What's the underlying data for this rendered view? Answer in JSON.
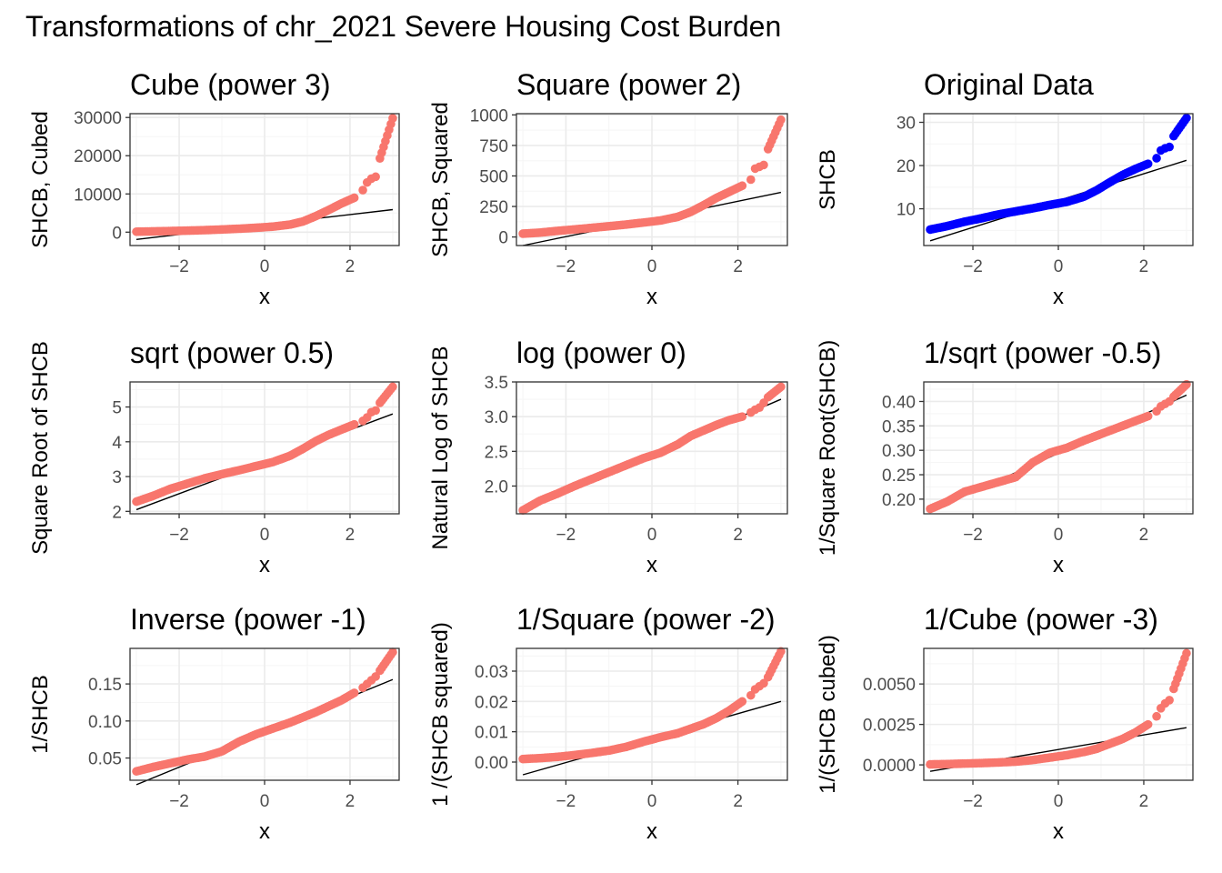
{
  "title": "Transformations of chr_2021 Severe Housing Cost Burden",
  "colors": {
    "points": "#F8766D",
    "original_points": "#0000FF",
    "line": "#000000",
    "grid_major": "#EBEBEB",
    "grid_minor": "#F5F5F5",
    "panel_border": "#333333"
  },
  "chart_data": [
    {
      "type": "scatter",
      "title": "Cube (power 3)",
      "xlabel": "x",
      "ylabel": "SHCB, Cubed",
      "xlim": [
        -3.15,
        3.15
      ],
      "ylim": [
        -3500,
        31000
      ],
      "xticks": [
        -2,
        0,
        2
      ],
      "yticks": [
        0,
        10000,
        20000,
        30000
      ],
      "ytick_labels": [
        "0",
        "10000",
        "20000",
        "30000"
      ],
      "point_color": "#F8766D",
      "points": [
        [
          -3,
          125
        ],
        [
          -2.6,
          200
        ],
        [
          -2.2,
          300
        ],
        [
          -1.8,
          400
        ],
        [
          -1.4,
          530
        ],
        [
          -1,
          700
        ],
        [
          -0.6,
          900
        ],
        [
          -0.2,
          1150
        ],
        [
          0.2,
          1450
        ],
        [
          0.6,
          2000
        ],
        [
          0.9,
          2800
        ],
        [
          1.2,
          4200
        ],
        [
          1.5,
          5800
        ],
        [
          1.8,
          7500
        ],
        [
          2.1,
          9000
        ],
        [
          2.3,
          11000
        ],
        [
          2.4,
          13000
        ],
        [
          2.5,
          14000
        ],
        [
          2.6,
          14500
        ],
        [
          2.7,
          19300
        ],
        [
          3,
          29800
        ]
      ],
      "line": [
        [
          -3,
          -1900
        ],
        [
          3,
          5900
        ]
      ]
    },
    {
      "type": "scatter",
      "title": "Square (power 2)",
      "xlabel": "x",
      "ylabel": "SHCB, Squared",
      "xlim": [
        -3.15,
        3.15
      ],
      "ylim": [
        -70,
        1010
      ],
      "xticks": [
        -2,
        0,
        2
      ],
      "yticks": [
        0,
        250,
        500,
        750,
        1000
      ],
      "ytick_labels": [
        "0",
        "250",
        "500",
        "750",
        "1000"
      ],
      "point_color": "#F8766D",
      "points": [
        [
          -3,
          27
        ],
        [
          -2.6,
          36
        ],
        [
          -2.2,
          50
        ],
        [
          -1.8,
          62
        ],
        [
          -1.4,
          75
        ],
        [
          -1,
          88
        ],
        [
          -0.6,
          102
        ],
        [
          -0.2,
          118
        ],
        [
          0.2,
          135
        ],
        [
          0.6,
          165
        ],
        [
          0.9,
          205
        ],
        [
          1.2,
          260
        ],
        [
          1.5,
          320
        ],
        [
          1.8,
          370
        ],
        [
          2.1,
          420
        ],
        [
          2.3,
          470
        ],
        [
          2.4,
          560
        ],
        [
          2.5,
          575
        ],
        [
          2.6,
          590
        ],
        [
          2.7,
          720
        ],
        [
          3,
          960
        ]
      ],
      "line": [
        [
          -3,
          -70
        ],
        [
          3,
          365
        ]
      ]
    },
    {
      "type": "scatter",
      "title": "Original Data",
      "xlabel": "x",
      "ylabel": "SHCB",
      "xlim": [
        -3.15,
        3.15
      ],
      "ylim": [
        1.5,
        32
      ],
      "xticks": [
        -2,
        0,
        2
      ],
      "yticks": [
        10,
        20,
        30
      ],
      "ytick_labels": [
        "10",
        "20",
        "30"
      ],
      "point_color": "#0000FF",
      "points": [
        [
          -3,
          5.2
        ],
        [
          -2.6,
          6
        ],
        [
          -2.2,
          7
        ],
        [
          -1.8,
          7.8
        ],
        [
          -1.4,
          8.7
        ],
        [
          -1,
          9.4
        ],
        [
          -0.6,
          10.1
        ],
        [
          -0.2,
          10.9
        ],
        [
          0.2,
          11.6
        ],
        [
          0.6,
          12.8
        ],
        [
          0.9,
          14.3
        ],
        [
          1.2,
          16.1
        ],
        [
          1.5,
          17.8
        ],
        [
          1.8,
          19.2
        ],
        [
          2.1,
          20.4
        ],
        [
          2.3,
          21.7
        ],
        [
          2.4,
          23.5
        ],
        [
          2.5,
          24
        ],
        [
          2.6,
          24.3
        ],
        [
          2.7,
          26.8
        ],
        [
          3,
          31
        ]
      ],
      "line": [
        [
          -3,
          2.6
        ],
        [
          3,
          21.2
        ]
      ]
    },
    {
      "type": "scatter",
      "title": "sqrt (power 0.5)",
      "xlabel": "x",
      "ylabel": "Square Root of SHCB",
      "xlim": [
        -3.15,
        3.15
      ],
      "ylim": [
        1.93,
        5.72
      ],
      "xticks": [
        -2,
        0,
        2
      ],
      "yticks": [
        2,
        3,
        4,
        5
      ],
      "ytick_labels": [
        "2",
        "3",
        "4",
        "5"
      ],
      "point_color": "#F8766D",
      "points": [
        [
          -3,
          2.28
        ],
        [
          -2.6,
          2.45
        ],
        [
          -2.2,
          2.65
        ],
        [
          -1.8,
          2.8
        ],
        [
          -1.4,
          2.95
        ],
        [
          -1,
          3.07
        ],
        [
          -0.6,
          3.18
        ],
        [
          -0.2,
          3.3
        ],
        [
          0.2,
          3.42
        ],
        [
          0.6,
          3.6
        ],
        [
          0.9,
          3.8
        ],
        [
          1.2,
          4.02
        ],
        [
          1.5,
          4.2
        ],
        [
          1.8,
          4.35
        ],
        [
          2.1,
          4.5
        ],
        [
          2.3,
          4.6
        ],
        [
          2.4,
          4.7
        ],
        [
          2.5,
          4.85
        ],
        [
          2.6,
          4.9
        ],
        [
          2.7,
          5.12
        ],
        [
          3,
          5.58
        ]
      ],
      "line": [
        [
          -3,
          2.05
        ],
        [
          3,
          4.8
        ]
      ]
    },
    {
      "type": "scatter",
      "title": "log (power 0)",
      "xlabel": "x",
      "ylabel": "Natural Log of SHCB",
      "xlim": [
        -3.15,
        3.15
      ],
      "ylim": [
        1.6,
        3.5
      ],
      "xticks": [
        -2,
        0,
        2
      ],
      "yticks": [
        2.0,
        2.5,
        3.0,
        3.5
      ],
      "ytick_labels": [
        "2.0",
        "2.5",
        "3.0",
        "3.5"
      ],
      "point_color": "#F8766D",
      "points": [
        [
          -3,
          1.65
        ],
        [
          -2.6,
          1.79
        ],
        [
          -2.2,
          1.89
        ],
        [
          -1.8,
          2.0
        ],
        [
          -1.4,
          2.1
        ],
        [
          -1,
          2.2
        ],
        [
          -0.6,
          2.3
        ],
        [
          -0.2,
          2.4
        ],
        [
          0.2,
          2.48
        ],
        [
          0.6,
          2.6
        ],
        [
          0.9,
          2.72
        ],
        [
          1.2,
          2.8
        ],
        [
          1.5,
          2.88
        ],
        [
          1.8,
          2.95
        ],
        [
          2.1,
          3.0
        ],
        [
          2.3,
          3.06
        ],
        [
          2.4,
          3.1
        ],
        [
          2.5,
          3.13
        ],
        [
          2.6,
          3.2
        ],
        [
          2.7,
          3.28
        ],
        [
          3,
          3.43
        ]
      ],
      "line": [
        [
          -3,
          1.65
        ],
        [
          3,
          3.25
        ]
      ]
    },
    {
      "type": "scatter",
      "title": "1/sqrt (power -0.5)",
      "xlabel": "x",
      "ylabel": "1/Square Root(SHCB)",
      "xlim": [
        -3.15,
        3.15
      ],
      "ylim": [
        0.17,
        0.44
      ],
      "xticks": [
        -2,
        0,
        2
      ],
      "yticks": [
        0.2,
        0.25,
        0.3,
        0.35,
        0.4
      ],
      "ytick_labels": [
        "0.20",
        "0.25",
        "0.30",
        "0.35",
        "0.40"
      ],
      "point_color": "#F8766D",
      "points": [
        [
          -3,
          0.18
        ],
        [
          -2.6,
          0.195
        ],
        [
          -2.2,
          0.215
        ],
        [
          -1.8,
          0.225
        ],
        [
          -1.4,
          0.235
        ],
        [
          -1,
          0.245
        ],
        [
          -0.6,
          0.275
        ],
        [
          -0.2,
          0.295
        ],
        [
          0.2,
          0.305
        ],
        [
          0.6,
          0.32
        ],
        [
          0.9,
          0.33
        ],
        [
          1.2,
          0.34
        ],
        [
          1.5,
          0.35
        ],
        [
          1.8,
          0.36
        ],
        [
          2.1,
          0.37
        ],
        [
          2.3,
          0.38
        ],
        [
          2.4,
          0.39
        ],
        [
          2.5,
          0.395
        ],
        [
          2.6,
          0.4
        ],
        [
          2.7,
          0.41
        ],
        [
          3,
          0.435
        ]
      ],
      "line": [
        [
          -3,
          0.175
        ],
        [
          3,
          0.413
        ]
      ]
    },
    {
      "type": "scatter",
      "title": "Inverse (power -1)",
      "xlabel": "x",
      "ylabel": "1/SHCB",
      "xlim": [
        -3.15,
        3.15
      ],
      "ylim": [
        0.02,
        0.198
      ],
      "xticks": [
        -2,
        0,
        2
      ],
      "yticks": [
        0.05,
        0.1,
        0.15
      ],
      "ytick_labels": [
        "0.05",
        "0.10",
        "0.15"
      ],
      "point_color": "#F8766D",
      "points": [
        [
          -3,
          0.032
        ],
        [
          -2.6,
          0.038
        ],
        [
          -2.2,
          0.043
        ],
        [
          -1.8,
          0.048
        ],
        [
          -1.4,
          0.052
        ],
        [
          -1,
          0.059
        ],
        [
          -0.6,
          0.072
        ],
        [
          -0.2,
          0.082
        ],
        [
          0.2,
          0.09
        ],
        [
          0.6,
          0.098
        ],
        [
          0.9,
          0.105
        ],
        [
          1.2,
          0.112
        ],
        [
          1.5,
          0.12
        ],
        [
          1.8,
          0.128
        ],
        [
          2.1,
          0.138
        ],
        [
          2.3,
          0.145
        ],
        [
          2.4,
          0.15
        ],
        [
          2.5,
          0.155
        ],
        [
          2.6,
          0.16
        ],
        [
          2.7,
          0.168
        ],
        [
          3,
          0.193
        ]
      ],
      "line": [
        [
          -3,
          0.014
        ],
        [
          3,
          0.156
        ]
      ]
    },
    {
      "type": "scatter",
      "title": "1/Square (power -2)",
      "xlabel": "x",
      "ylabel": "1 /(SHCB squared)",
      "xlim": [
        -3.15,
        3.15
      ],
      "ylim": [
        -0.006,
        0.0375
      ],
      "xticks": [
        -2,
        0,
        2
      ],
      "yticks": [
        0,
        0.01,
        0.02,
        0.03
      ],
      "ytick_labels": [
        "0.00",
        "0.01",
        "0.02",
        "0.03"
      ],
      "point_color": "#F8766D",
      "points": [
        [
          -3,
          0.001
        ],
        [
          -2.6,
          0.0013
        ],
        [
          -2.2,
          0.0017
        ],
        [
          -1.8,
          0.0023
        ],
        [
          -1.4,
          0.003
        ],
        [
          -1,
          0.0038
        ],
        [
          -0.6,
          0.005
        ],
        [
          -0.2,
          0.0067
        ],
        [
          0.2,
          0.0082
        ],
        [
          0.6,
          0.0095
        ],
        [
          0.9,
          0.011
        ],
        [
          1.2,
          0.0125
        ],
        [
          1.5,
          0.0145
        ],
        [
          1.8,
          0.017
        ],
        [
          2.1,
          0.02
        ],
        [
          2.3,
          0.022
        ],
        [
          2.4,
          0.024
        ],
        [
          2.5,
          0.025
        ],
        [
          2.6,
          0.026
        ],
        [
          2.7,
          0.028
        ],
        [
          3,
          0.0365
        ]
      ],
      "line": [
        [
          -3,
          -0.0042
        ],
        [
          3,
          0.02
        ]
      ]
    },
    {
      "type": "scatter",
      "title": "1/Cube (power -3)",
      "xlabel": "x",
      "ylabel": "1/(SHCB cubed)",
      "xlim": [
        -3.15,
        3.15
      ],
      "ylim": [
        -0.00095,
        0.0072
      ],
      "xticks": [
        -2,
        0,
        2
      ],
      "yticks": [
        0,
        0.0025,
        0.005
      ],
      "ytick_labels": [
        "0.0000",
        "0.0025",
        "0.0050"
      ],
      "point_color": "#F8766D",
      "points": [
        [
          -3,
          3e-05
        ],
        [
          -2.6,
          5e-05
        ],
        [
          -2.2,
          8e-05
        ],
        [
          -1.8,
          0.00011
        ],
        [
          -1.4,
          0.00015
        ],
        [
          -1,
          0.0002
        ],
        [
          -0.6,
          0.0003
        ],
        [
          -0.2,
          0.00045
        ],
        [
          0.2,
          0.0006
        ],
        [
          0.6,
          0.0008
        ],
        [
          0.9,
          0.001
        ],
        [
          1.2,
          0.0013
        ],
        [
          1.5,
          0.0016
        ],
        [
          1.8,
          0.002
        ],
        [
          2.1,
          0.0025
        ],
        [
          2.3,
          0.003
        ],
        [
          2.4,
          0.0035
        ],
        [
          2.5,
          0.0038
        ],
        [
          2.6,
          0.004
        ],
        [
          2.7,
          0.0047
        ],
        [
          3,
          0.0069
        ]
      ],
      "line": [
        [
          -3,
          -0.0004
        ],
        [
          3,
          0.0023
        ]
      ]
    }
  ]
}
